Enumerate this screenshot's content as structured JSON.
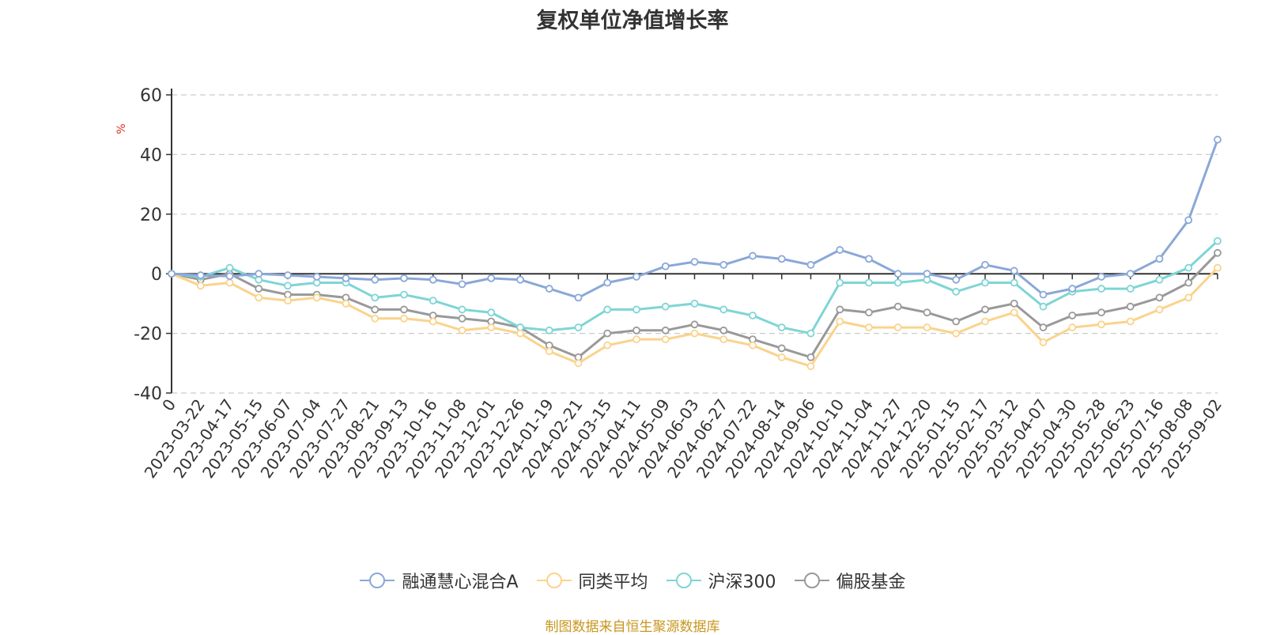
{
  "source_note": "制图数据来自恒生聚源数据库",
  "chart_data": {
    "type": "line",
    "title": "复权单位净值增长率",
    "ylabel": "%",
    "ylim": [
      -40,
      60
    ],
    "yticks": [
      "60",
      "40",
      "20",
      "0",
      "-20",
      "-40"
    ],
    "grid": true,
    "legend_position": "bottom",
    "x_tick_labels": [
      "0",
      "2023-03-22",
      "2023-04-17",
      "2023-05-15",
      "2023-06-07",
      "2023-07-04",
      "2023-07-27",
      "2023-08-21",
      "2023-09-13",
      "2023-10-16",
      "2023-11-08",
      "2023-12-01",
      "2023-12-26",
      "2024-01-19",
      "2024-02-21",
      "2024-03-15",
      "2024-04-11",
      "2024-05-09",
      "2024-06-03",
      "2024-06-27",
      "2024-07-22",
      "2024-08-14",
      "2024-09-06",
      "2024-10-10",
      "2024-11-04",
      "2024-11-27",
      "2024-12-20",
      "2025-01-15",
      "2025-02-17",
      "2025-03-12",
      "2025-04-07",
      "2025-04-30",
      "2025-05-28",
      "2025-06-23",
      "2025-07-16",
      "2025-08-08",
      "2025-09-02"
    ],
    "series": [
      {
        "name": "融通慧心混合A",
        "color": "#8aa8d8",
        "values": [
          0,
          -0.5,
          -0.8,
          0,
          -0.5,
          -1,
          -1.5,
          -2,
          -1.5,
          -2,
          -3.5,
          -1.5,
          -2,
          -5,
          -8,
          -3,
          -1,
          2.5,
          4,
          3,
          6,
          5,
          3,
          8,
          5,
          0,
          0,
          -2,
          3,
          1,
          -7,
          -5,
          -1,
          0,
          5,
          18,
          45
        ]
      },
      {
        "name": "同类平均",
        "color": "#fad38c",
        "values": [
          0,
          -4,
          -3,
          -8,
          -9,
          -8,
          -10,
          -15,
          -15,
          -16,
          -19,
          -18,
          -20,
          -26,
          -30,
          -24,
          -22,
          -22,
          -20,
          -22,
          -24,
          -28,
          -31,
          -16,
          -18,
          -18,
          -18,
          -20,
          -16,
          -13,
          -23,
          -18,
          -17,
          -16,
          -12,
          -8,
          2
        ]
      },
      {
        "name": "沪深300",
        "color": "#7fd5d5",
        "values": [
          0,
          -1,
          2,
          -2,
          -4,
          -3,
          -3,
          -8,
          -7,
          -9,
          -12,
          -13,
          -18,
          -19,
          -18,
          -12,
          -12,
          -11,
          -10,
          -12,
          -14,
          -18,
          -20,
          -3,
          -3,
          -3,
          -2,
          -6,
          -3,
          -3,
          -11,
          -6,
          -5,
          -5,
          -2,
          2,
          11
        ]
      },
      {
        "name": "偏股基金",
        "color": "#999999",
        "values": [
          0,
          -2,
          0,
          -5,
          -7,
          -7,
          -8,
          -12,
          -12,
          -14,
          -15,
          -16,
          -18,
          -24,
          -28,
          -20,
          -19,
          -19,
          -17,
          -19,
          -22,
          -25,
          -28,
          -12,
          -13,
          -11,
          -13,
          -16,
          -12,
          -10,
          -18,
          -14,
          -13,
          -11,
          -8,
          -3,
          7
        ]
      }
    ]
  }
}
